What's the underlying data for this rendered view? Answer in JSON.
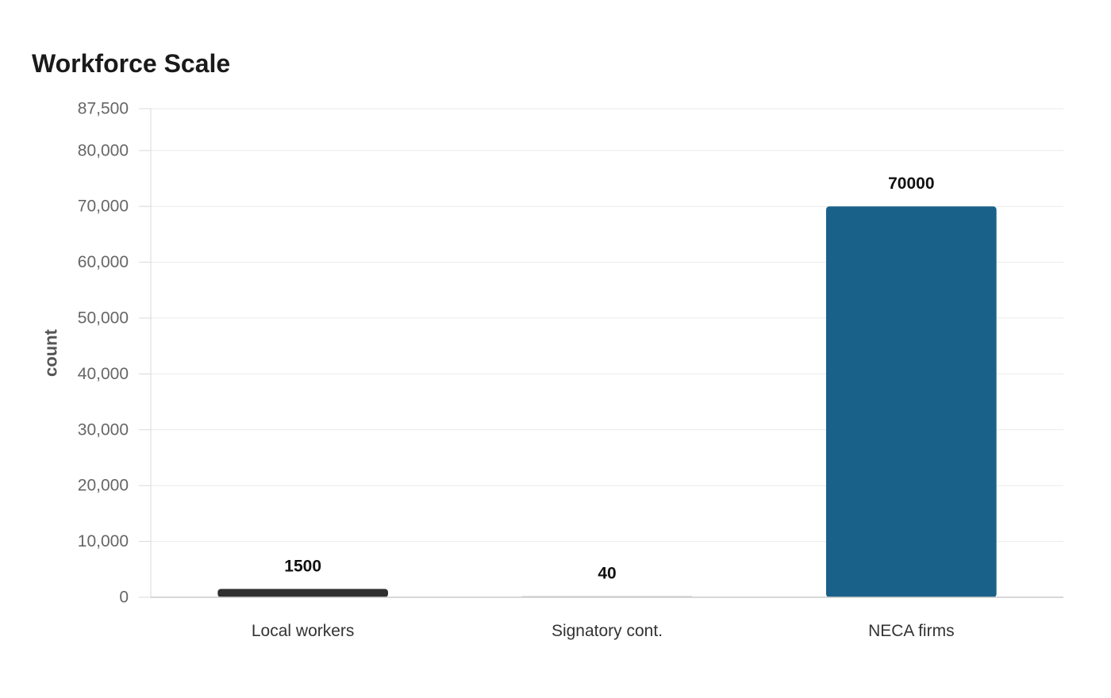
{
  "chart_data": {
    "type": "bar",
    "title": "Workforce Scale",
    "xlabel": "",
    "ylabel": "count",
    "categories": [
      "Local workers",
      "Signatory cont.",
      "NECA firms"
    ],
    "values": [
      1500,
      40,
      70000
    ],
    "value_labels": [
      "1500",
      "40",
      "70000"
    ],
    "colors": [
      "#2f2f2f",
      "#c8c8c8",
      "#1a6189"
    ],
    "ylim": [
      0,
      87500
    ],
    "yticks": [
      0,
      10000,
      20000,
      30000,
      40000,
      50000,
      60000,
      70000,
      80000,
      87500
    ],
    "ytick_labels": [
      "0",
      "10,000",
      "20,000",
      "30,000",
      "40,000",
      "50,000",
      "60,000",
      "70,000",
      "80,000",
      "87,500"
    ],
    "grid": true,
    "legend": "none"
  }
}
